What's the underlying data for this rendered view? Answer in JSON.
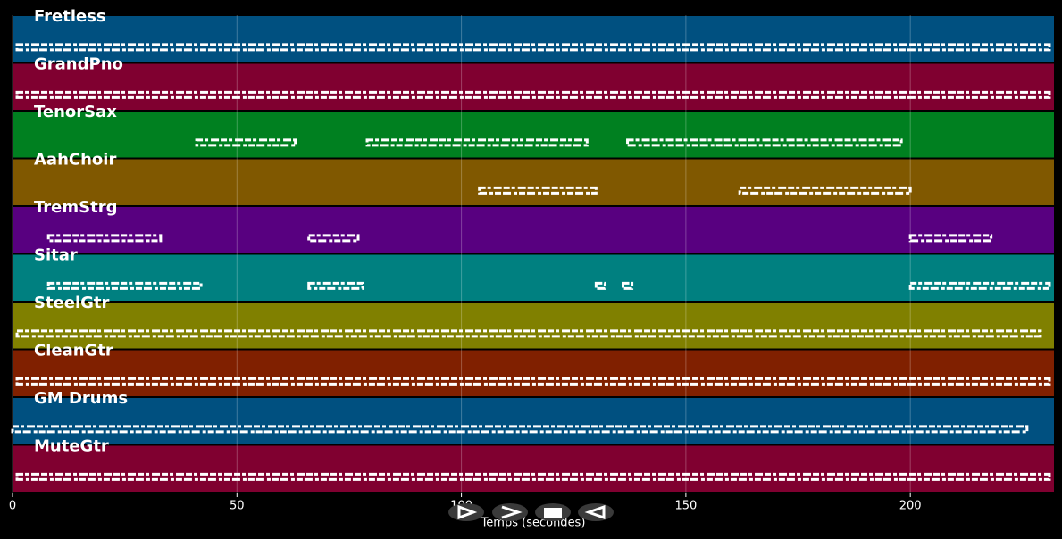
{
  "chart_data": {
    "type": "pianoroll",
    "xlabel": "Temps (secondes)",
    "xlim": [
      0,
      232
    ],
    "xticks": [
      0,
      50,
      100,
      150,
      200
    ],
    "grid": true,
    "tracks": [
      {
        "name": "Fretless",
        "color": "#005080",
        "spans": [
          [
            1,
            231
          ]
        ]
      },
      {
        "name": "GrandPno",
        "color": "#800030",
        "spans": [
          [
            1,
            231
          ]
        ]
      },
      {
        "name": "TenorSax",
        "color": "#008020",
        "spans": [
          [
            41,
            63
          ],
          [
            79,
            128
          ],
          [
            137,
            198
          ]
        ]
      },
      {
        "name": "AahChoir",
        "color": "#805800",
        "spans": [
          [
            104,
            130
          ],
          [
            162,
            200
          ]
        ]
      },
      {
        "name": "TremStrg",
        "color": "#580080",
        "spans": [
          [
            8,
            33
          ],
          [
            66,
            77
          ],
          [
            200,
            218
          ]
        ]
      },
      {
        "name": "Sitar",
        "color": "#008080",
        "spans": [
          [
            8,
            42
          ],
          [
            66,
            78
          ],
          [
            130,
            132
          ],
          [
            136,
            138
          ],
          [
            200,
            231
          ]
        ]
      },
      {
        "name": "SteelGtr",
        "color": "#808000",
        "spans": [
          [
            1,
            229
          ]
        ]
      },
      {
        "name": "CleanGtr",
        "color": "#802000",
        "spans": [
          [
            1,
            231
          ]
        ]
      },
      {
        "name": "GM Drums",
        "color": "#005080",
        "spans": [
          [
            0,
            226
          ]
        ]
      },
      {
        "name": "MuteGtr",
        "color": "#800030",
        "spans": [
          [
            1,
            231
          ]
        ]
      }
    ]
  }
}
